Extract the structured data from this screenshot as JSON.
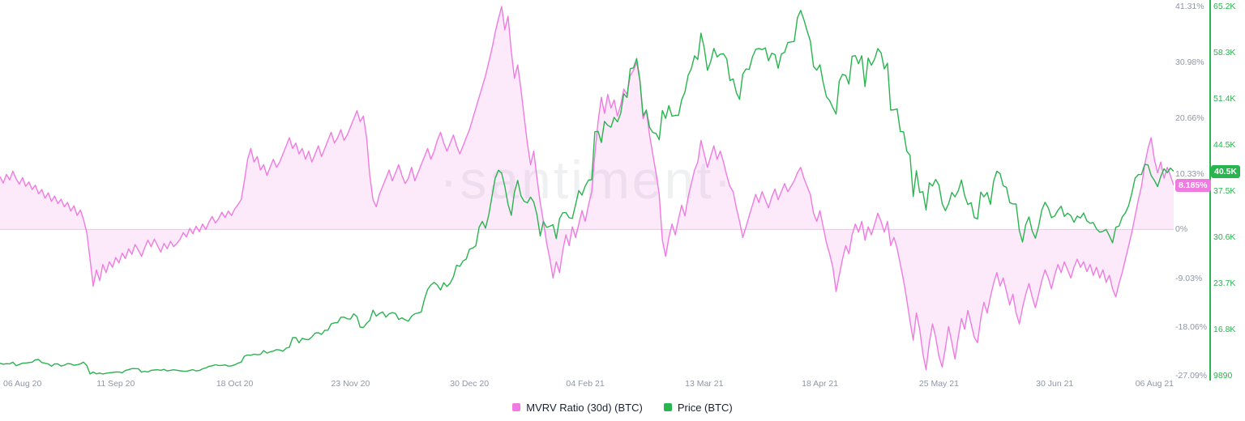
{
  "watermark": "·santiment·",
  "colors": {
    "mvrv_pink": "#ef7be0",
    "price_green": "#28b44e",
    "axis_gray": "#8f96a3",
    "legend_text": "#1b2030"
  },
  "chart_data": {
    "type": "line",
    "title": "",
    "grid": false,
    "legend_position": "bottom",
    "x_axis": {
      "range_days": 365,
      "labels": [
        "06 Aug 20",
        "11 Sep 20",
        "18 Oct 20",
        "23 Nov 20",
        "30 Dec 20",
        "04 Feb 21",
        "13 Mar 21",
        "18 Apr 21",
        "25 May 21",
        "30 Jun 21",
        "06 Aug 21"
      ],
      "days": [
        0,
        36,
        73,
        109,
        146,
        182,
        219,
        255,
        292,
        328,
        365
      ]
    },
    "series": [
      {
        "name": "MVRV Ratio (30d) (BTC)",
        "style": "area",
        "color": "#ef7be0",
        "fill": "rgba(239,123,224,0.16)",
        "zero_line_color": "rgba(239,123,224,0.45)",
        "unit": "%",
        "axis": {
          "min": -27.09,
          "max": 41.31,
          "ticks": [
            {
              "label": "41.31%",
              "value": 41.31
            },
            {
              "label": "30.98%",
              "value": 30.98
            },
            {
              "label": "20.66%",
              "value": 20.66
            },
            {
              "label": "10.33%",
              "value": 10.33
            },
            {
              "label": "0%",
              "value": 0
            },
            {
              "label": "-9.03%",
              "value": -9.03
            },
            {
              "label": "-18.06%",
              "value": -18.06
            },
            {
              "label": "-27.09%",
              "value": -27.09
            }
          ]
        },
        "current": {
          "label": "8.185%",
          "value": 8.185
        },
        "values": [
          9.8,
          8.6,
          10.2,
          9.2,
          10.8,
          9.4,
          8.4,
          9.6,
          8,
          8.8,
          7.4,
          8.2,
          6.6,
          7.4,
          5.8,
          6.8,
          5.2,
          6.2,
          4.8,
          5.6,
          4.2,
          5,
          3.4,
          4.4,
          2.6,
          3.6,
          1.8,
          -0.6,
          -5.5,
          -10.5,
          -7.5,
          -9.5,
          -6.5,
          -8,
          -6,
          -7,
          -5.2,
          -6.2,
          -4.4,
          -5.4,
          -3.6,
          -4.6,
          -2.8,
          -3.8,
          -5,
          -3.4,
          -2,
          -3.2,
          -1.8,
          -3,
          -4.2,
          -2.6,
          -3.6,
          -2.2,
          -3.2,
          -2.6,
          -1.8,
          -0.6,
          -1.4,
          0.2,
          -0.8,
          0.6,
          -0.4,
          1,
          0,
          1.4,
          2.4,
          1.2,
          2,
          3.2,
          2.2,
          3.4,
          2.6,
          3.8,
          4.6,
          5.5,
          9,
          13,
          15,
          12.5,
          13.5,
          11,
          12,
          10,
          11.5,
          13,
          11.5,
          12.5,
          14,
          15.5,
          17,
          15,
          16,
          14,
          15,
          13,
          14.5,
          12.5,
          14,
          15.5,
          13.5,
          15,
          16.5,
          18,
          16,
          17,
          18.5,
          16.5,
          17.5,
          19,
          20.5,
          22,
          20,
          21,
          17,
          10,
          5.5,
          4.2,
          6.5,
          8,
          9.5,
          11,
          9,
          10.5,
          12,
          10,
          8.5,
          9.5,
          11.5,
          9,
          10.5,
          12,
          13.5,
          15,
          13,
          14.5,
          16.5,
          18,
          16,
          14.5,
          16,
          17.5,
          15.5,
          14,
          15.5,
          17,
          18.5,
          20.5,
          22.5,
          24.5,
          26.5,
          28.5,
          31,
          33.5,
          36.5,
          39,
          41.31,
          37,
          39.5,
          33,
          28,
          30.5,
          26,
          21,
          16,
          12,
          14.5,
          9.5,
          5,
          1.5,
          -2.5,
          -5.5,
          -9,
          -6,
          -8,
          -4,
          -1,
          -3,
          0.5,
          -1.5,
          1,
          3.5,
          1.5,
          4.5,
          7,
          14,
          20,
          24.5,
          21.5,
          25,
          22.5,
          24,
          21,
          23,
          26,
          25,
          28.5,
          29.5,
          31,
          27.5,
          20.5,
          22,
          17.5,
          14,
          10.5,
          6.5,
          -2,
          -5,
          -1.5,
          1,
          -1,
          2,
          4.5,
          2.5,
          6,
          8.5,
          11,
          12.5,
          16.5,
          14,
          11.5,
          13.5,
          15.5,
          13,
          14.5,
          12.5,
          10,
          8,
          7,
          4,
          1.5,
          -1.5,
          0.5,
          2.5,
          4.5,
          6.5,
          5,
          7,
          5.5,
          4,
          6,
          7.5,
          5.5,
          7,
          8.5,
          7,
          8,
          9,
          10.5,
          11.5,
          9.5,
          8,
          6.5,
          3,
          1.5,
          3.5,
          0.5,
          -2.5,
          -4.5,
          -7,
          -11.5,
          -8.5,
          -5.5,
          -3,
          -4.5,
          -1,
          1,
          -0.5,
          1.5,
          -2,
          0.5,
          -1,
          1,
          3,
          1.5,
          -0.5,
          1.5,
          -3,
          -1.5,
          -3.5,
          -6.5,
          -9.5,
          -13,
          -17,
          -20.5,
          -15.5,
          -18.5,
          -23,
          -26,
          -21,
          -17.5,
          -20,
          -23.5,
          -25.5,
          -22,
          -18,
          -21,
          -24,
          -20,
          -16.5,
          -18.5,
          -15,
          -17.5,
          -20,
          -21,
          -16.5,
          -13.5,
          -15.5,
          -12.5,
          -10,
          -8,
          -10.5,
          -9,
          -11.5,
          -14,
          -12,
          -15.5,
          -17.5,
          -14.5,
          -12,
          -10,
          -12.5,
          -14.5,
          -12,
          -9.5,
          -7.5,
          -9,
          -11,
          -8.5,
          -6.5,
          -8,
          -6,
          -7.5,
          -9,
          -7,
          -5.5,
          -7,
          -6,
          -7.8,
          -6.5,
          -8.5,
          -7,
          -9,
          -7.5,
          -9.8,
          -8.5,
          -11,
          -12.5,
          -10,
          -8,
          -5.5,
          -3,
          -0.5,
          2.5,
          5.5,
          8,
          12,
          15,
          17,
          13,
          10.5,
          12.5,
          9.5,
          11.5,
          10,
          8.185
        ]
      },
      {
        "name": "Price (BTC)",
        "style": "line",
        "color": "#28b44e",
        "unit": "K USD",
        "axis": {
          "min": 9.89,
          "max": 65.2,
          "ticks": [
            {
              "label": "65.2K",
              "value": 65.2
            },
            {
              "label": "58.3K",
              "value": 58.3
            },
            {
              "label": "51.4K",
              "value": 51.4
            },
            {
              "label": "44.5K",
              "value": 44.5
            },
            {
              "label": "37.5K",
              "value": 37.5
            },
            {
              "label": "30.6K",
              "value": 30.6
            },
            {
              "label": "23.7K",
              "value": 23.7
            },
            {
              "label": "16.8K",
              "value": 16.8
            },
            {
              "label": "9890",
              "value": 9.89
            }
          ]
        },
        "current": {
          "label": "40.5K",
          "value": 40.5
        },
        "values": [
          11.76,
          11.6,
          11.68,
          11.66,
          11.9,
          11.38,
          11.56,
          11.77,
          11.78,
          11.85,
          11.91,
          12.25,
          12.32,
          11.86,
          11.76,
          11.65,
          11.31,
          11.66,
          11.65,
          11.32,
          11.47,
          11.7,
          11.65,
          11.44,
          11.51,
          11.66,
          11.92,
          11.41,
          10.14,
          10.44,
          10.17,
          10.28,
          10.13,
          10.24,
          10.33,
          10.36,
          10.44,
          10.45,
          10.33,
          10.67,
          10.79,
          10.95,
          10.94,
          10.93,
          10.42,
          10.53,
          10.44,
          10.69,
          10.74,
          10.78,
          10.69,
          10.84,
          10.6,
          10.69,
          10.77,
          10.7,
          10.62,
          10.57,
          10.55,
          10.67,
          10.79,
          10.6,
          10.67,
          10.92,
          11.06,
          11.29,
          11.37,
          11.53,
          11.42,
          11.43,
          11.5,
          11.32,
          11.36,
          11.51,
          11.76,
          11.91,
          12.8,
          12.99,
          12.93,
          13.12,
          13.03,
          13.07,
          13.65,
          13.27,
          13.46,
          13.56,
          13.8,
          13.74,
          13.55,
          14.02,
          14.14,
          15.58,
          15.6,
          14.82,
          15.48,
          15.33,
          15.29,
          15.7,
          16.28,
          16.32,
          16.07,
          16.7,
          16.71,
          17.65,
          17.8,
          17.82,
          18.64,
          18.66,
          18.4,
          18.37,
          19.16,
          18.73,
          17.15,
          17.11,
          17.72,
          18.18,
          19.7,
          18.8,
          19.2,
          19.44,
          18.65,
          19.15,
          19.35,
          19.19,
          18.32,
          18.55,
          18.26,
          18.04,
          18.8,
          19.17,
          19.27,
          19.43,
          21.36,
          22.81,
          23.47,
          23.86,
          23.48,
          22.72,
          23.82,
          23.24,
          23.74,
          24.71,
          26.44,
          26.27,
          27.08,
          27.36,
          28.84,
          29,
          29.37,
          32.13,
          33,
          31.99,
          33.95,
          36.77,
          39.46,
          40.67,
          40.24,
          38.24,
          35.57,
          33.92,
          37.37,
          39.15,
          36.83,
          36.02,
          35.79,
          36.64,
          35.91,
          33.96,
          30.82,
          33.01,
          32.1,
          32.28,
          32.51,
          30.43,
          33.4,
          34.29,
          34.32,
          33.54,
          33.45,
          35.51,
          37.62,
          36.94,
          38.29,
          39.19,
          39.25,
          46.43,
          46.48,
          44.82,
          47.98,
          47.39,
          47.11,
          48.59,
          47.92,
          49.13,
          52.13,
          51.57,
          55.89,
          56,
          57.41,
          54.12,
          48.84,
          49.7,
          47.09,
          46.34,
          46.19,
          45.24,
          49.63,
          48.44,
          50.35,
          48.75,
          48.88,
          48.91,
          51.21,
          52.38,
          54.88,
          55.88,
          57.81,
          57.25,
          61.2,
          59,
          55.63,
          56.9,
          58.92,
          57.64,
          58.05,
          58.1,
          57.35,
          54.1,
          54.34,
          52.27,
          51.3,
          55.07,
          55.84,
          55.78,
          57.63,
          58.76,
          58.92,
          58.73,
          59,
          57.06,
          58.19,
          58,
          55.95,
          58.08,
          58.33,
          59.79,
          59.89,
          59.97,
          63.5,
          64.6,
          63.22,
          61.57,
          60.05,
          56.22,
          55.65,
          56.47,
          53.81,
          51.69,
          51.11,
          50.05,
          49.08,
          54.02,
          55.03,
          54.85,
          53.57,
          57.75,
          57.83,
          56.63,
          57.83,
          53.21,
          57.47,
          56.4,
          57.35,
          58.88,
          58.25,
          55.85,
          56.7,
          49.67,
          49.72,
          49.85,
          46.45,
          46.42,
          43.54,
          42.91,
          36.75,
          40.6,
          37.34,
          37.45,
          34.72,
          38.8,
          38.32,
          39.29,
          38.44,
          35.66,
          34.61,
          35.64,
          37.34,
          36.68,
          37.57,
          39.21,
          36.88,
          35.52,
          35.8,
          33.58,
          33.39,
          37.39,
          36.68,
          37.33,
          35.54,
          38.98,
          40.52,
          40.16,
          38.35,
          38.09,
          35.82,
          35.62,
          35.6,
          31.62,
          29.9,
          32.51,
          33.68,
          31.59,
          30.48,
          32.28,
          34.7,
          35.86,
          35.04,
          33.57,
          33.8,
          34.67,
          35.28,
          33.75,
          34.23,
          33.87,
          32.88,
          33.8,
          33.5,
          34.26,
          33.08,
          32.73,
          32.82,
          31.88,
          31.4,
          31.52,
          31.8,
          30.84,
          29.79,
          32.14,
          32.3,
          33.65,
          34.29,
          35.38,
          37.24,
          39.48,
          40.02,
          40.02,
          41.55,
          41.46,
          39.88,
          39.15,
          38.21,
          39.75,
          40.88,
          40.3,
          41,
          40.5
        ]
      }
    ]
  },
  "legend": {
    "items": [
      {
        "label": "MVRV Ratio (30d) (BTC)"
      },
      {
        "label": "Price (BTC)"
      }
    ]
  }
}
